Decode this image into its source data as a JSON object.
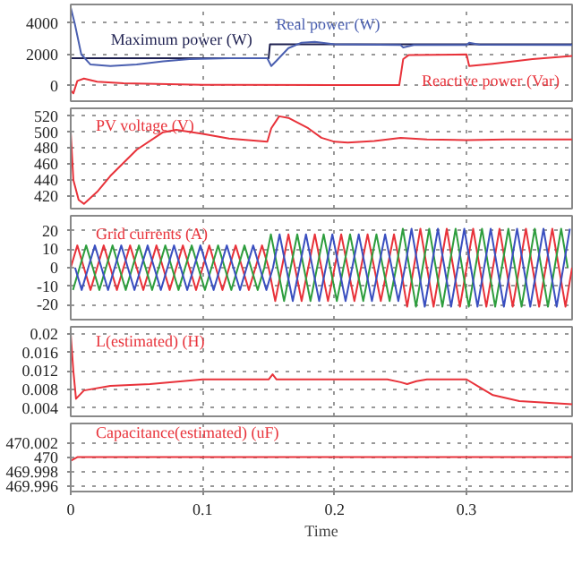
{
  "chart_data": [
    {
      "type": "line",
      "xlim": [
        0,
        0.38
      ],
      "xticks": [
        0,
        0.1,
        0.2,
        0.3
      ],
      "ylim": [
        -1000,
        5200
      ],
      "yticks": [
        0,
        2000,
        4000
      ],
      "grid": true,
      "tick_labels": "y",
      "series": [
        {
          "name": "Maximum power (W)",
          "color": "#1e2050",
          "x": [
            0,
            0.15,
            0.151,
            0.38
          ],
          "values": [
            1750,
            1750,
            2650,
            2650
          ]
        },
        {
          "name": "Real power (W)",
          "color": "#4a5fb0",
          "x": [
            0,
            0.003,
            0.008,
            0.015,
            0.03,
            0.05,
            0.07,
            0.09,
            0.12,
            0.149,
            0.152,
            0.156,
            0.165,
            0.175,
            0.185,
            0.2,
            0.25,
            0.252,
            0.26,
            0.3,
            0.302,
            0.31,
            0.38
          ],
          "values": [
            5000,
            4000,
            2000,
            1350,
            1250,
            1350,
            1550,
            1700,
            1750,
            1750,
            1250,
            1600,
            2400,
            2750,
            2800,
            2650,
            2600,
            2450,
            2600,
            2600,
            2750,
            2620,
            2600
          ]
        },
        {
          "name": "Reactive power (Var)",
          "color": "#e8323a",
          "x": [
            0,
            0.002,
            0.005,
            0.01,
            0.02,
            0.04,
            0.1,
            0.2,
            0.249,
            0.252,
            0.256,
            0.3,
            0.302,
            0.32,
            0.35,
            0.38
          ],
          "values": [
            -300,
            -500,
            300,
            450,
            250,
            150,
            50,
            30,
            30,
            1700,
            1950,
            2000,
            1250,
            1400,
            1700,
            1900
          ]
        }
      ]
    },
    {
      "type": "line",
      "ylabel": "PV voltage (V)",
      "xlim": [
        0,
        0.38
      ],
      "xticks": [
        0,
        0.1,
        0.2,
        0.3
      ],
      "ylim": [
        404,
        530
      ],
      "yticks": [
        420,
        440,
        460,
        480,
        500,
        520
      ],
      "grid": true,
      "tick_labels": "y",
      "series": [
        {
          "color": "#e8323a",
          "x": [
            0,
            0.002,
            0.006,
            0.01,
            0.02,
            0.03,
            0.05,
            0.07,
            0.08,
            0.1,
            0.12,
            0.149,
            0.152,
            0.158,
            0.165,
            0.18,
            0.19,
            0.2,
            0.21,
            0.23,
            0.25,
            0.27,
            0.3,
            0.33,
            0.38
          ],
          "values": [
            500,
            440,
            415,
            410,
            425,
            445,
            478,
            500,
            503,
            498,
            492,
            488,
            505,
            520,
            518,
            505,
            493,
            488,
            487,
            489,
            493,
            491,
            490,
            491,
            491
          ]
        }
      ]
    },
    {
      "type": "line",
      "ylabel": "Grid currents (A)",
      "xlim": [
        0,
        0.38
      ],
      "xticks": [
        0,
        0.1,
        0.2,
        0.3
      ],
      "ylim": [
        -28,
        28
      ],
      "yticks": [
        -20,
        -10,
        0,
        10,
        20
      ],
      "grid": true,
      "tick_labels": "y",
      "series": [
        {
          "color": "#e8323a",
          "x": [
            0,
            0.005,
            0.01,
            0.015,
            0.02,
            0.025,
            0.03,
            0.035,
            0.04,
            0.045,
            0.05,
            0.055,
            0.06,
            0.065,
            0.07,
            0.075,
            0.08,
            0.085,
            0.09,
            0.095,
            0.1,
            0.105,
            0.11,
            0.115,
            0.12,
            0.125,
            0.13,
            0.135,
            0.14,
            0.145,
            0.15,
            0.155,
            0.16,
            0.165,
            0.17,
            0.175,
            0.18,
            0.185,
            0.19,
            0.195,
            0.2,
            0.205,
            0.21,
            0.215,
            0.22,
            0.225,
            0.23,
            0.235,
            0.24,
            0.245,
            0.25,
            0.255,
            0.26,
            0.265,
            0.27,
            0.275,
            0.28,
            0.285,
            0.29,
            0.295,
            0.3,
            0.305,
            0.31,
            0.315,
            0.32,
            0.325,
            0.33,
            0.335,
            0.34,
            0.345,
            0.35,
            0.355,
            0.36,
            0.365,
            0.37,
            0.375,
            0.38
          ],
          "values": [
            0,
            12,
            0,
            -12,
            0,
            12,
            0,
            -12,
            0,
            12,
            0,
            -12,
            0,
            12,
            0,
            -12,
            0,
            12,
            0,
            -12,
            0,
            12,
            0,
            -12,
            0,
            12,
            0,
            -12,
            0,
            12,
            0,
            -18,
            0,
            18,
            0,
            -18,
            0,
            18,
            0,
            -18,
            0,
            18,
            0,
            -18,
            0,
            18,
            0,
            -18,
            0,
            18,
            0,
            -21,
            0,
            21,
            0,
            -21,
            0,
            21,
            0,
            -21,
            0,
            21,
            0,
            -21,
            0,
            21,
            0,
            -21,
            0,
            21,
            0,
            -21,
            0,
            21,
            0,
            -21,
            0
          ]
        },
        {
          "color": "#2e9e3e",
          "x": [
            0.0017,
            0.0067,
            0.0117,
            0.0167,
            0.0217,
            0.0267,
            0.0317,
            0.0367,
            0.0417,
            0.0467,
            0.0517,
            0.0567,
            0.0617,
            0.0667,
            0.0717,
            0.0767,
            0.0817,
            0.0867,
            0.0917,
            0.0967,
            0.1017,
            0.1067,
            0.1117,
            0.1167,
            0.1217,
            0.1267,
            0.1317,
            0.1367,
            0.1417,
            0.1467,
            0.1517,
            0.1567,
            0.1617,
            0.1667,
            0.1717,
            0.1767,
            0.1817,
            0.1867,
            0.1917,
            0.1967,
            0.2017,
            0.2067,
            0.2117,
            0.2167,
            0.2217,
            0.2267,
            0.2317,
            0.2367,
            0.2417,
            0.2467,
            0.2517,
            0.2567,
            0.2617,
            0.2667,
            0.2717,
            0.2767,
            0.2817,
            0.2867,
            0.2917,
            0.2967,
            0.3017,
            0.3067,
            0.3117,
            0.3167,
            0.3217,
            0.3267,
            0.3317,
            0.3367,
            0.3417,
            0.3467,
            0.3517,
            0.3567,
            0.3617,
            0.3667,
            0.3717,
            0.3767
          ],
          "values": [
            -12,
            0,
            12,
            0,
            -12,
            0,
            12,
            0,
            -12,
            0,
            12,
            0,
            -12,
            0,
            12,
            0,
            -12,
            0,
            12,
            0,
            -12,
            0,
            12,
            0,
            -12,
            0,
            12,
            0,
            -12,
            0,
            18,
            0,
            -18,
            0,
            18,
            0,
            -18,
            0,
            18,
            0,
            -18,
            0,
            18,
            0,
            -18,
            0,
            18,
            0,
            -18,
            0,
            21,
            0,
            -21,
            0,
            21,
            0,
            -21,
            0,
            21,
            0,
            -21,
            0,
            21,
            0,
            -21,
            0,
            21,
            0,
            -21,
            0,
            21,
            0,
            -21,
            0,
            21,
            0
          ]
        },
        {
          "color": "#3a4fc0",
          "x": [
            0.0033,
            0.0083,
            0.0133,
            0.0183,
            0.0233,
            0.0283,
            0.0333,
            0.0383,
            0.0433,
            0.0483,
            0.0533,
            0.0583,
            0.0633,
            0.0683,
            0.0733,
            0.0783,
            0.0833,
            0.0883,
            0.0933,
            0.0983,
            0.1033,
            0.1083,
            0.1133,
            0.1183,
            0.1233,
            0.1283,
            0.1333,
            0.1383,
            0.1433,
            0.1483,
            0.1533,
            0.1583,
            0.1633,
            0.1683,
            0.1733,
            0.1783,
            0.1833,
            0.1883,
            0.1933,
            0.1983,
            0.2033,
            0.2083,
            0.2133,
            0.2183,
            0.2233,
            0.2283,
            0.2333,
            0.2383,
            0.2433,
            0.2483,
            0.2533,
            0.2583,
            0.2633,
            0.2683,
            0.2733,
            0.2783,
            0.2833,
            0.2883,
            0.2933,
            0.2983,
            0.3033,
            0.3083,
            0.3133,
            0.3183,
            0.3233,
            0.3283,
            0.3333,
            0.3383,
            0.3433,
            0.3483,
            0.3533,
            0.3583,
            0.3633,
            0.3683,
            0.3733,
            0.3783
          ],
          "values": [
            0,
            -12,
            0,
            12,
            0,
            -12,
            0,
            12,
            0,
            -12,
            0,
            12,
            0,
            -12,
            0,
            12,
            0,
            -12,
            0,
            12,
            0,
            -12,
            0,
            12,
            0,
            -12,
            0,
            12,
            0,
            -12,
            0,
            18,
            0,
            -18,
            0,
            18,
            0,
            -18,
            0,
            18,
            0,
            -18,
            0,
            18,
            0,
            -18,
            0,
            18,
            0,
            -18,
            0,
            21,
            0,
            -21,
            0,
            21,
            0,
            -21,
            0,
            21,
            0,
            -21,
            0,
            21,
            0,
            -21,
            0,
            21,
            0,
            -21,
            0,
            21,
            0,
            -21,
            0,
            21
          ]
        }
      ]
    },
    {
      "type": "line",
      "ylabel": "L(estimated) (H)",
      "xlim": [
        0,
        0.38
      ],
      "xticks": [
        0,
        0.1,
        0.2,
        0.3
      ],
      "ylim": [
        0.0022,
        0.0216
      ],
      "yticks": [
        0.004,
        0.008,
        0.012,
        0.016,
        0.02
      ],
      "grid": true,
      "tick_labels": "y",
      "series": [
        {
          "color": "#e8323a",
          "x": [
            0,
            0.002,
            0.004,
            0.01,
            0.03,
            0.06,
            0.1,
            0.15,
            0.153,
            0.156,
            0.24,
            0.25,
            0.255,
            0.262,
            0.27,
            0.3,
            0.31,
            0.32,
            0.34,
            0.38
          ],
          "values": [
            0.02,
            0.012,
            0.006,
            0.0078,
            0.0088,
            0.0092,
            0.0102,
            0.0102,
            0.0113,
            0.0102,
            0.0102,
            0.0096,
            0.0092,
            0.0098,
            0.0102,
            0.0102,
            0.0085,
            0.0068,
            0.0055,
            0.0048
          ]
        }
      ]
    },
    {
      "type": "line",
      "ylabel": "Capacitance(estimated) (uF)",
      "xlabel": "Time",
      "xlim": [
        0,
        0.38
      ],
      "xticks": [
        0,
        0.1,
        0.2,
        0.3
      ],
      "ylim": [
        469.9952,
        470.0047
      ],
      "yticks": [
        469.996,
        469.998,
        470,
        470.002
      ],
      "grid": true,
      "series": [
        {
          "color": "#e8323a",
          "x": [
            0,
            0.005,
            0.38
          ],
          "values": [
            469.9995,
            470,
            470
          ]
        }
      ]
    }
  ]
}
